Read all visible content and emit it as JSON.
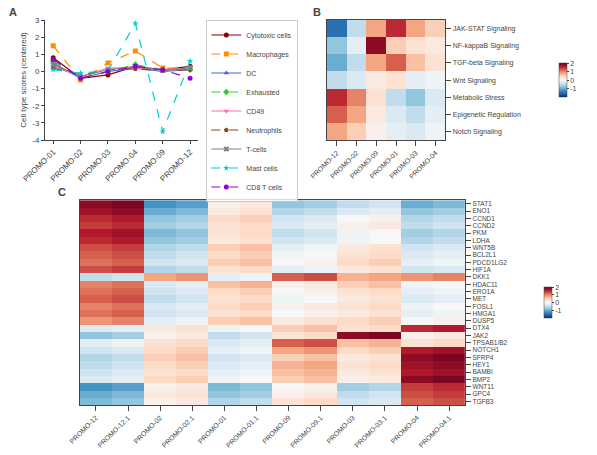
{
  "chart_data": [
    {
      "type": "line",
      "title": "A",
      "categories": [
        "PROMO-01",
        "PROMO-02",
        "PROMO-03",
        "PROMO-04",
        "PROMO-09",
        "PROMO-12"
      ],
      "ylabel": "Cell type scores (centered)",
      "series": [
        {
          "name": "Cytotoxic cells",
          "color": "#8B0000",
          "line_style": "solid",
          "marker": "circle",
          "values": [
            0.8,
            -0.4,
            -0.2,
            0.3,
            0.1,
            0.3
          ]
        },
        {
          "name": "Macrophages",
          "color": "#FF8C00",
          "line_style": "dashed",
          "marker": "square",
          "values": [
            1.5,
            -0.5,
            0.5,
            1.2,
            0.2,
            0.2
          ]
        },
        {
          "name": "DC",
          "color": "#4169E1",
          "line_style": "solid",
          "marker": "triangle-up",
          "values": [
            0.5,
            -0.4,
            0.0,
            0.2,
            0.0,
            0.1
          ]
        },
        {
          "name": "Exhausted",
          "color": "#32CD32",
          "line_style": "dashed",
          "marker": "diamond",
          "values": [
            0.6,
            -0.4,
            0.0,
            0.4,
            0.1,
            0.1
          ]
        },
        {
          "name": "CD49",
          "color": "#FF69B4",
          "line_style": "solid",
          "marker": "triangle-down",
          "values": [
            0.3,
            -0.3,
            0.2,
            0.2,
            0.1,
            0.2
          ]
        },
        {
          "name": "Neutrophils",
          "color": "#8B4513",
          "line_style": "dashed",
          "marker": "pentagon",
          "values": [
            0.2,
            -0.2,
            0.1,
            0.15,
            0.05,
            0.1
          ]
        },
        {
          "name": "T-cells",
          "color": "#808080",
          "line_style": "solid",
          "marker": "x",
          "values": [
            0.4,
            -0.3,
            0.1,
            0.3,
            0.05,
            0.2
          ]
        },
        {
          "name": "Mast cells",
          "color": "#00CED1",
          "line_style": "dashed",
          "marker": "star",
          "values": [
            0.1,
            -0.1,
            0.05,
            2.8,
            -3.5,
            0.6
          ]
        },
        {
          "name": "CD8 T cells",
          "color": "#9400D3",
          "line_style": "dashed",
          "marker": "circle",
          "values": [
            0.7,
            -0.4,
            0.0,
            0.3,
            0.1,
            -0.4
          ]
        }
      ],
      "ylim": [
        -4,
        3
      ],
      "yticks": [
        -4,
        -3,
        -2,
        -1,
        0,
        1,
        2,
        3
      ],
      "grid": false,
      "legend": "right"
    },
    {
      "type": "heatmap",
      "title": "B",
      "x": [
        "PROMO-12",
        "PROMO-02",
        "PROMO-09",
        "PROMO-01",
        "PROMO-03",
        "PROMO-04"
      ],
      "y": [
        "JAK-STAT Signaling",
        "NF-kappaB Signaling",
        "TGF-beta Signaling",
        "Wnt Signaling",
        "Metabolic Stress",
        "Epigenetic Regulation",
        "Notch Signaling"
      ],
      "values": [
        [
          -1.5,
          -0.5,
          0.8,
          1.5,
          0.8,
          0.5
        ],
        [
          -0.8,
          -0.2,
          1.8,
          0.5,
          0.3,
          0.2
        ],
        [
          -1.0,
          -0.5,
          0.8,
          1.2,
          0.6,
          0.3
        ],
        [
          -0.5,
          -0.3,
          0.2,
          0.3,
          -0.2,
          -0.1
        ],
        [
          1.5,
          1.0,
          0.3,
          -0.5,
          -0.8,
          -0.3
        ],
        [
          1.2,
          0.8,
          0.2,
          -0.3,
          -0.5,
          -0.2
        ],
        [
          0.8,
          0.5,
          0.1,
          -0.2,
          -0.3,
          -0.1
        ]
      ],
      "colorbar_range": [
        -2,
        2
      ],
      "colorbar_ticks": [
        2,
        1,
        0,
        -1
      ],
      "grid": false
    },
    {
      "type": "heatmap",
      "title": "C",
      "x": [
        "PROMO-12",
        "PROMO-12.1",
        "PROMO-02",
        "PROMO-02.1",
        "PROMO-01",
        "PROMO-01.1",
        "PROMO-09",
        "PROMO-09.1",
        "PROMO-03",
        "PROMO-03.1",
        "PROMO-04",
        "PROMO-04.1"
      ],
      "y": [
        "STAT1",
        "ENO1",
        "CCND1",
        "CCND2",
        "PKM",
        "LDHA",
        "WNT5B",
        "BCL2L1",
        "PDCD1LG2",
        "HIF1A",
        "DKK1",
        "HDAC11",
        "ERO1A",
        "MET",
        "FOSL1",
        "HMGA1",
        "DUSP5",
        "DTX4",
        "JAK2",
        "TPSAB1/B2",
        "NOTCH1",
        "SFRP4",
        "HEY1",
        "BAMBI",
        "BMP2",
        "WNT11",
        "GPC4",
        "TGFB3"
      ],
      "values": [
        [
          1.8,
          1.9,
          -1.2,
          -1.1,
          0.1,
          0.2,
          -0.8,
          -0.7,
          -0.5,
          -0.4,
          -1.0,
          -0.9
        ],
        [
          1.7,
          1.8,
          -1.0,
          -0.9,
          0.2,
          0.3,
          -0.6,
          -0.5,
          -0.3,
          -0.2,
          -0.8,
          -0.7
        ],
        [
          1.5,
          1.6,
          -0.8,
          -0.7,
          0.4,
          0.5,
          -0.4,
          -0.3,
          0.0,
          0.1,
          -0.6,
          -0.5
        ],
        [
          1.4,
          1.5,
          -0.7,
          -0.6,
          0.3,
          0.4,
          -0.3,
          -0.2,
          0.1,
          0.2,
          -0.5,
          -0.4
        ],
        [
          1.6,
          1.7,
          -0.9,
          -0.8,
          0.3,
          0.4,
          -0.5,
          -0.4,
          -0.1,
          0.0,
          -0.7,
          -0.6
        ],
        [
          1.5,
          1.6,
          -0.8,
          -0.7,
          0.2,
          0.3,
          -0.4,
          -0.3,
          -0.1,
          0.0,
          -0.6,
          -0.5
        ],
        [
          1.3,
          1.4,
          -0.6,
          -0.5,
          0.5,
          0.6,
          -0.2,
          -0.1,
          0.2,
          0.3,
          -0.4,
          -0.3
        ],
        [
          1.2,
          1.3,
          -0.5,
          -0.4,
          0.4,
          0.5,
          -0.1,
          0.0,
          0.3,
          0.4,
          -0.3,
          -0.2
        ],
        [
          1.1,
          1.2,
          -0.4,
          -0.3,
          0.5,
          0.6,
          0.0,
          0.1,
          0.4,
          0.5,
          -0.2,
          -0.1
        ],
        [
          1.3,
          1.4,
          -0.6,
          -0.5,
          0.3,
          0.4,
          -0.2,
          -0.1,
          0.2,
          0.3,
          -0.4,
          -0.3
        ],
        [
          -0.5,
          -0.4,
          0.8,
          0.9,
          -0.2,
          -0.1,
          1.2,
          1.3,
          0.7,
          0.8,
          0.9,
          1.0
        ],
        [
          1.0,
          1.1,
          -0.3,
          -0.2,
          0.6,
          0.7,
          0.1,
          0.2,
          0.5,
          0.6,
          -0.1,
          0.0
        ],
        [
          1.1,
          1.2,
          -0.4,
          -0.3,
          0.4,
          0.5,
          0.0,
          0.1,
          0.3,
          0.4,
          -0.2,
          -0.1
        ],
        [
          1.2,
          1.3,
          -0.5,
          -0.4,
          0.3,
          0.4,
          -0.1,
          0.0,
          0.2,
          0.3,
          -0.3,
          -0.2
        ],
        [
          1.0,
          1.1,
          -0.3,
          -0.2,
          0.4,
          0.5,
          0.1,
          0.2,
          0.3,
          0.4,
          -0.1,
          0.0
        ],
        [
          1.1,
          1.2,
          -0.4,
          -0.3,
          0.3,
          0.4,
          0.0,
          0.1,
          0.2,
          0.3,
          -0.2,
          -0.1
        ],
        [
          0.9,
          1.0,
          -0.2,
          -0.1,
          0.5,
          0.6,
          0.2,
          0.3,
          0.4,
          0.5,
          0.0,
          0.1
        ],
        [
          -0.3,
          -0.2,
          0.2,
          0.3,
          -0.1,
          0.0,
          0.5,
          0.6,
          0.3,
          0.4,
          1.5,
          1.6
        ],
        [
          -0.8,
          -0.7,
          0.1,
          0.2,
          -0.5,
          -0.4,
          0.3,
          0.4,
          1.8,
          1.9,
          0.1,
          0.2
        ],
        [
          -0.2,
          -0.1,
          0.3,
          0.4,
          -0.3,
          -0.2,
          1.2,
          1.3,
          0.6,
          0.7,
          0.3,
          0.4
        ],
        [
          -0.4,
          -0.3,
          0.4,
          0.5,
          -0.2,
          -0.1,
          0.8,
          0.9,
          0.4,
          0.5,
          1.6,
          1.7
        ],
        [
          -0.6,
          -0.5,
          0.5,
          0.6,
          -0.4,
          -0.3,
          0.5,
          0.6,
          0.2,
          0.3,
          1.8,
          1.9
        ],
        [
          -0.5,
          -0.4,
          0.4,
          0.5,
          -0.3,
          -0.2,
          0.7,
          0.8,
          0.3,
          0.4,
          1.7,
          1.8
        ],
        [
          -0.4,
          -0.3,
          0.3,
          0.4,
          -0.2,
          -0.1,
          0.6,
          0.7,
          0.2,
          0.3,
          1.6,
          1.7
        ],
        [
          -0.3,
          -0.2,
          0.4,
          0.5,
          -0.1,
          0.0,
          0.5,
          0.6,
          0.1,
          0.2,
          1.8,
          1.9
        ],
        [
          -1.2,
          -1.1,
          0.1,
          0.2,
          -0.9,
          -0.8,
          0.0,
          0.1,
          -0.7,
          -0.6,
          1.4,
          1.5
        ],
        [
          -1.0,
          -0.9,
          0.2,
          0.3,
          -0.8,
          -0.7,
          0.1,
          0.2,
          -0.5,
          -0.4,
          1.3,
          1.4
        ],
        [
          -0.9,
          -0.8,
          0.1,
          0.2,
          -0.6,
          -0.5,
          0.3,
          0.4,
          -0.4,
          -0.3,
          1.2,
          1.3
        ]
      ],
      "colorbar_range": [
        -2,
        2
      ],
      "colorbar_ticks": [
        2,
        1,
        0,
        -1
      ],
      "grid": false
    }
  ]
}
